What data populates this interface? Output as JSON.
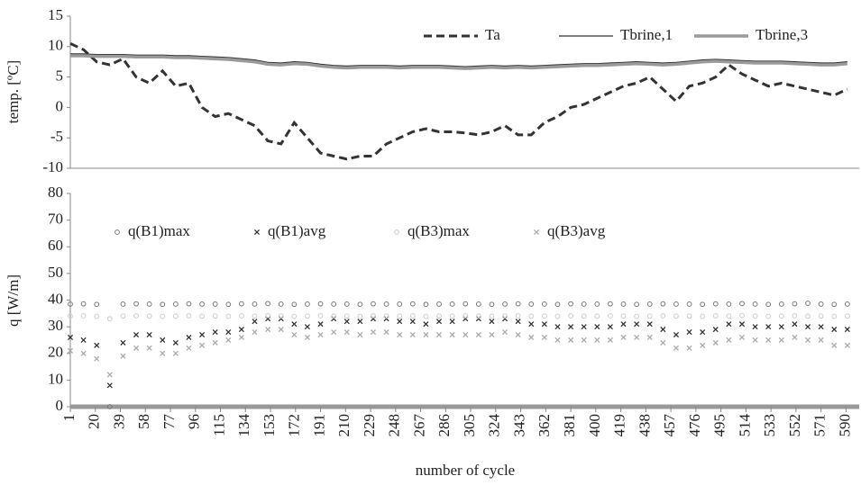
{
  "chart_data": [
    {
      "type": "line",
      "ylabel": "temp. [ºC]",
      "xlim": [
        1,
        600
      ],
      "ylim": [
        -10,
        15
      ],
      "yticks": [
        -10,
        -5,
        0,
        5,
        10,
        15
      ],
      "legend": "upper right",
      "x": [
        1,
        11,
        21,
        31,
        41,
        51,
        61,
        71,
        81,
        91,
        101,
        111,
        121,
        131,
        141,
        151,
        161,
        171,
        181,
        191,
        201,
        211,
        221,
        231,
        241,
        251,
        261,
        271,
        281,
        291,
        301,
        311,
        321,
        331,
        341,
        351,
        361,
        371,
        381,
        391,
        401,
        411,
        421,
        431,
        441,
        451,
        461,
        471,
        481,
        491,
        501,
        511,
        521,
        531,
        541,
        551,
        561,
        571,
        581,
        591
      ],
      "series": [
        {
          "name": "Ta",
          "color": "#333333",
          "linestyle": "dashed",
          "values": [
            10.5,
            9.5,
            7.5,
            7,
            8,
            5,
            4,
            6,
            3.5,
            4,
            0,
            -1.5,
            -1,
            -2,
            -3,
            -5.5,
            -6,
            -2.5,
            -5,
            -7.5,
            -8,
            -8.5,
            -8,
            -8,
            -6,
            -5,
            -4,
            -3.5,
            -4,
            -4,
            -4.2,
            -4.5,
            -4,
            -3,
            -4.5,
            -4.5,
            -2.5,
            -1.5,
            0,
            0.5,
            1.5,
            2.5,
            3.5,
            4,
            5,
            3,
            1,
            3.5,
            4,
            5,
            7,
            5.5,
            4.5,
            3.5,
            4,
            3.5,
            3,
            2.5,
            2,
            3
          ]
        },
        {
          "name": "Tbrine,1",
          "color": "#333333",
          "linestyle": "solid",
          "values": [
            8.8,
            8.8,
            8.7,
            8.7,
            8.7,
            8.6,
            8.6,
            8.6,
            8.5,
            8.5,
            8.4,
            8.3,
            8.2,
            8.0,
            7.8,
            7.4,
            7.3,
            7.5,
            7.4,
            7.1,
            6.9,
            6.8,
            6.9,
            6.9,
            6.9,
            6.8,
            6.9,
            6.9,
            6.9,
            6.8,
            6.7,
            6.8,
            6.9,
            6.8,
            6.9,
            6.8,
            6.9,
            7.0,
            7.1,
            7.2,
            7.2,
            7.3,
            7.4,
            7.5,
            7.4,
            7.3,
            7.4,
            7.6,
            7.8,
            7.9,
            7.8,
            7.7,
            7.6,
            7.6,
            7.6,
            7.5,
            7.4,
            7.3,
            7.3,
            7.5
          ]
        },
        {
          "name": "Tbrine,3",
          "color": "#9a9a9a",
          "linestyle": "thick",
          "values": [
            8.5,
            8.5,
            8.4,
            8.4,
            8.4,
            8.3,
            8.3,
            8.3,
            8.2,
            8.2,
            8.1,
            8.0,
            7.9,
            7.7,
            7.5,
            7.1,
            7.0,
            7.2,
            7.1,
            6.8,
            6.6,
            6.5,
            6.6,
            6.6,
            6.6,
            6.5,
            6.6,
            6.6,
            6.6,
            6.5,
            6.4,
            6.5,
            6.6,
            6.5,
            6.6,
            6.5,
            6.6,
            6.7,
            6.8,
            6.9,
            6.9,
            7.0,
            7.1,
            7.2,
            7.1,
            7.0,
            7.1,
            7.3,
            7.5,
            7.6,
            7.5,
            7.4,
            7.3,
            7.3,
            7.3,
            7.2,
            7.1,
            7.0,
            7.0,
            7.2
          ]
        }
      ]
    },
    {
      "type": "scatter",
      "xlabel": "number of cycle",
      "ylabel": "q [W/m]",
      "xlim": [
        1,
        600
      ],
      "xticks": [
        1,
        20,
        39,
        58,
        77,
        96,
        115,
        134,
        153,
        172,
        191,
        210,
        229,
        248,
        267,
        286,
        305,
        324,
        343,
        362,
        381,
        400,
        419,
        438,
        457,
        476,
        495,
        514,
        533,
        552,
        571,
        590
      ],
      "ylim": [
        0,
        80
      ],
      "yticks": [
        0,
        10,
        20,
        30,
        40,
        50,
        60,
        70,
        80
      ],
      "legend": "upper left",
      "x": [
        1,
        11,
        21,
        31,
        41,
        51,
        61,
        71,
        81,
        91,
        101,
        111,
        121,
        131,
        141,
        151,
        161,
        171,
        181,
        191,
        201,
        211,
        221,
        231,
        241,
        251,
        261,
        271,
        281,
        291,
        301,
        311,
        321,
        331,
        341,
        351,
        361,
        371,
        381,
        391,
        401,
        411,
        421,
        431,
        441,
        451,
        461,
        471,
        481,
        491,
        501,
        511,
        521,
        531,
        541,
        551,
        561,
        571,
        581,
        591
      ],
      "series": [
        {
          "name": "q(B1)max",
          "color": "#777777",
          "marker": "circle",
          "values": [
            38.5,
            38.6,
            38.4,
            0,
            38.5,
            38.6,
            38.5,
            38.4,
            38.5,
            38.6,
            38.5,
            38.5,
            38.4,
            38.6,
            38.5,
            38.7,
            38.5,
            38.4,
            38.5,
            38.6,
            38.5,
            38.5,
            38.4,
            38.6,
            38.5,
            38.5,
            38.6,
            38.4,
            38.5,
            38.5,
            38.6,
            38.5,
            38.4,
            38.5,
            38.6,
            38.5,
            38.5,
            38.4,
            38.6,
            38.5,
            38.5,
            38.6,
            38.5,
            38.4,
            38.5,
            38.6,
            38.5,
            38.5,
            38.4,
            38.6,
            38.5,
            38.7,
            38.5,
            38.4,
            38.5,
            38.6,
            38.8,
            38.5,
            38.4,
            38.5
          ]
        },
        {
          "name": "q(B1)avg",
          "color": "#333333",
          "marker": "x",
          "values": [
            26,
            25,
            23,
            8,
            24,
            27,
            27,
            25,
            24,
            26,
            27,
            28,
            28,
            29,
            32,
            33,
            33,
            31,
            30,
            31,
            33,
            32,
            32,
            33,
            33,
            32,
            32,
            31,
            32,
            32,
            33,
            33,
            32,
            33,
            32,
            31,
            31,
            30,
            30,
            30,
            30,
            30,
            31,
            31,
            31,
            29,
            27,
            28,
            28,
            29,
            31,
            31,
            30,
            30,
            30,
            31,
            30,
            30,
            29,
            29
          ]
        },
        {
          "name": "q(B3)max",
          "color": "#cccccc",
          "marker": "circle",
          "values": [
            34,
            34.1,
            33.9,
            33,
            34,
            34.1,
            34,
            33.9,
            34,
            34.1,
            34,
            34,
            33.9,
            34.1,
            34,
            34.2,
            34,
            33.9,
            34,
            34.1,
            34,
            34,
            33.9,
            34.1,
            34,
            34,
            34.1,
            33.9,
            34,
            34,
            34.1,
            34,
            33.9,
            34,
            34.1,
            34,
            34,
            33.9,
            34.1,
            34,
            34,
            34.1,
            34,
            33.9,
            34,
            34.1,
            34,
            34,
            33.9,
            34.1,
            34,
            34.2,
            34,
            33.9,
            34,
            34.1,
            34,
            34,
            33.9,
            34
          ]
        },
        {
          "name": "q(B3)avg",
          "color": "#aaaaaa",
          "marker": "x",
          "values": [
            21,
            20,
            18,
            12,
            19,
            22,
            22,
            20,
            20,
            22,
            23,
            24,
            25,
            26,
            28,
            29,
            29,
            27,
            26,
            27,
            28,
            28,
            27,
            28,
            28,
            27,
            27,
            27,
            27,
            27,
            27,
            27,
            27,
            28,
            27,
            26,
            26,
            25,
            25,
            25,
            25,
            25,
            26,
            26,
            26,
            24,
            22,
            22,
            23,
            24,
            25,
            26,
            25,
            25,
            25,
            26,
            25,
            25,
            23,
            23
          ]
        }
      ]
    }
  ]
}
